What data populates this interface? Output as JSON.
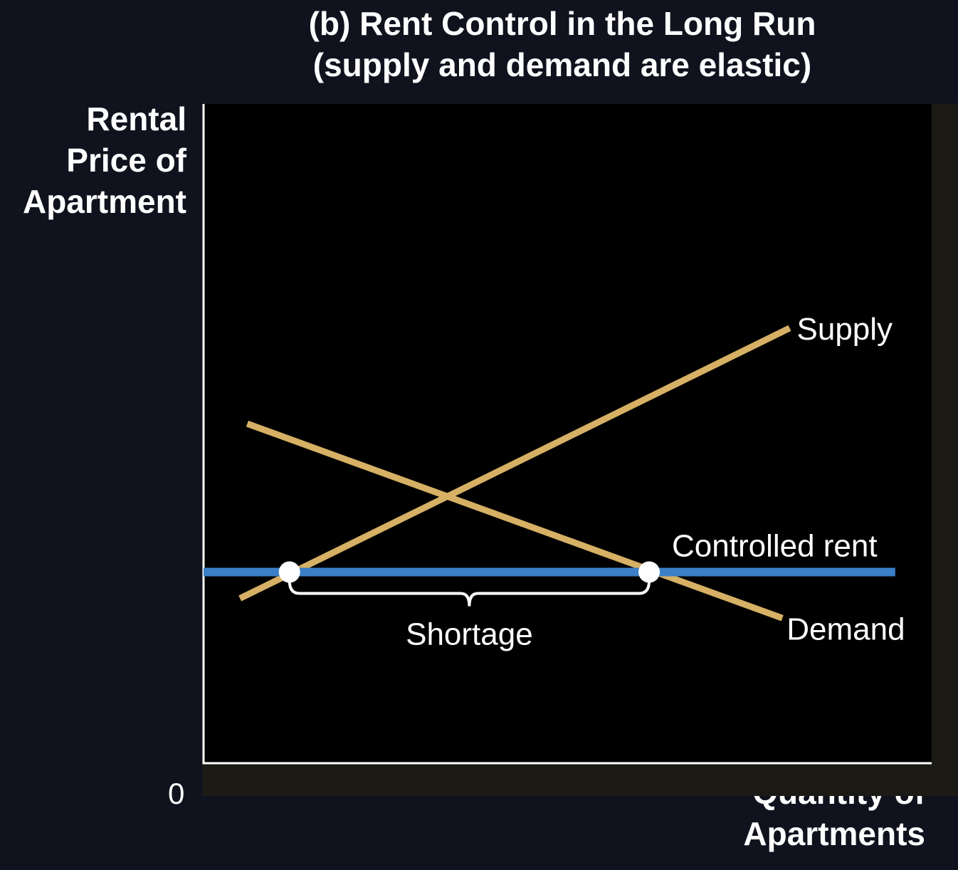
{
  "chart_data": {
    "type": "line",
    "title": "(b) Rent Control in the Long Run",
    "subtitle": "(supply and demand are elastic)",
    "ylabel_lines": [
      "Rental",
      "Price of",
      "Apartment"
    ],
    "xlabel_lines": [
      "Quantity of",
      "Apartments"
    ],
    "origin_label": "0",
    "xlim": [
      0,
      100
    ],
    "ylim": [
      0,
      100
    ],
    "grid": false,
    "series": [
      {
        "name": "Supply",
        "color": "#d6b064",
        "x": [
          5,
          80.5
        ],
        "y": [
          25,
          66
        ]
      },
      {
        "name": "Demand",
        "color": "#d6b064",
        "x": [
          6,
          79.5
        ],
        "y": [
          51.5,
          22
        ]
      }
    ],
    "price_control": {
      "name": "Controlled rent",
      "color": "#3a7fc8",
      "y": 29,
      "x": [
        0,
        95
      ]
    },
    "points": [
      {
        "x": 11.8,
        "y": 29
      },
      {
        "x": 61.2,
        "y": 29
      }
    ],
    "shortage": {
      "label": "Shortage",
      "x": [
        11.8,
        61.2
      ]
    }
  }
}
